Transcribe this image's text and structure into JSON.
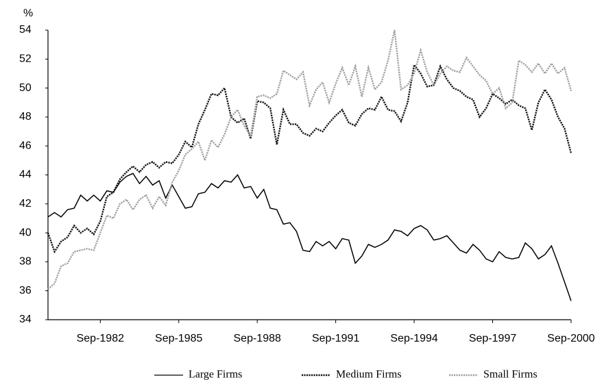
{
  "chart_data": {
    "type": "line",
    "ylabel": "%",
    "categories": [
      null,
      null,
      null,
      null,
      null,
      null,
      null,
      null,
      "Sep-1982",
      null,
      null,
      null,
      null,
      null,
      null,
      null,
      null,
      null,
      null,
      null,
      "Sep-1985",
      null,
      null,
      null,
      null,
      null,
      null,
      null,
      null,
      null,
      null,
      null,
      "Sep-1988",
      null,
      null,
      null,
      null,
      null,
      null,
      null,
      null,
      null,
      null,
      null,
      "Sep-1991",
      null,
      null,
      null,
      null,
      null,
      null,
      null,
      null,
      null,
      null,
      null,
      "Sep-1994",
      null,
      null,
      null,
      null,
      null,
      null,
      null,
      null,
      null,
      null,
      null,
      "Sep-1997",
      null,
      null,
      null,
      null,
      null,
      null,
      null,
      null,
      null,
      null,
      null,
      "Sep-2000"
    ],
    "ylim": [
      34,
      54
    ],
    "yticks": [
      34,
      36,
      38,
      40,
      42,
      44,
      46,
      48,
      50,
      52,
      54
    ],
    "grid": false,
    "legend": "bottom",
    "series": [
      {
        "name": "Large Firms",
        "color": "#000000",
        "style": "solid",
        "values": [
          41.1,
          41.4,
          41.1,
          41.6,
          41.7,
          42.6,
          42.2,
          42.6,
          42.2,
          42.9,
          42.8,
          43.5,
          43.9,
          44.1,
          43.4,
          43.9,
          43.3,
          43.6,
          42.4,
          43.3,
          42.5,
          41.7,
          41.8,
          42.7,
          42.8,
          43.4,
          43.1,
          43.6,
          43.5,
          44.0,
          43.1,
          43.2,
          42.4,
          43.0,
          41.7,
          41.6,
          40.6,
          40.7,
          40.1,
          38.8,
          38.7,
          39.4,
          39.1,
          39.4,
          38.9,
          39.6,
          39.5,
          37.9,
          38.4,
          39.2,
          39.0,
          39.2,
          39.5,
          40.2,
          40.1,
          39.8,
          40.3,
          40.5,
          40.2,
          39.5,
          39.6,
          39.8,
          39.3,
          38.8,
          38.6,
          39.2,
          38.8,
          38.2,
          38.0,
          38.7,
          38.3,
          38.2,
          38.3,
          39.3,
          38.9,
          38.2,
          38.5,
          39.1,
          37.9,
          36.6,
          35.3
        ]
      },
      {
        "name": "Medium Firms",
        "color": "#111111",
        "style": "dotted",
        "values": [
          40.0,
          38.7,
          39.4,
          39.7,
          40.5,
          40.0,
          40.3,
          39.9,
          40.8,
          42.5,
          42.8,
          43.7,
          44.2,
          44.6,
          44.2,
          44.7,
          44.9,
          44.5,
          44.9,
          44.8,
          45.4,
          46.3,
          45.9,
          47.5,
          48.5,
          49.6,
          49.5,
          50.0,
          48.0,
          47.6,
          47.9,
          46.5,
          49.1,
          49.0,
          48.6,
          46.1,
          48.5,
          47.5,
          47.5,
          46.9,
          46.7,
          47.2,
          47.0,
          47.6,
          48.1,
          48.5,
          47.6,
          47.4,
          48.2,
          48.6,
          48.5,
          49.4,
          48.5,
          48.4,
          47.7,
          49.0,
          51.6,
          51.0,
          50.1,
          50.2,
          51.5,
          50.6,
          50.0,
          49.8,
          49.4,
          49.2,
          48.0,
          48.6,
          49.6,
          49.3,
          48.9,
          49.2,
          48.8,
          48.6,
          47.1,
          49.0,
          49.9,
          49.2,
          48.0,
          47.2,
          45.5
        ]
      },
      {
        "name": "Small Firms",
        "color": "#a0a0a0",
        "style": "dotted",
        "values": [
          36.1,
          36.5,
          37.7,
          37.9,
          38.7,
          38.8,
          38.9,
          38.8,
          40.0,
          41.2,
          41.0,
          42.0,
          42.3,
          41.6,
          42.3,
          42.6,
          41.7,
          42.5,
          41.9,
          43.5,
          44.3,
          45.4,
          45.8,
          46.3,
          45.0,
          46.4,
          45.9,
          46.8,
          48.0,
          48.5,
          47.4,
          46.7,
          49.4,
          49.5,
          49.3,
          49.6,
          51.2,
          50.9,
          50.6,
          51.1,
          48.8,
          49.9,
          50.4,
          49.0,
          50.3,
          51.4,
          50.2,
          51.5,
          49.4,
          51.4,
          49.9,
          50.4,
          51.9,
          54.0,
          49.9,
          50.2,
          51.0,
          52.6,
          51.1,
          50.2,
          51.0,
          51.5,
          51.2,
          51.1,
          52.1,
          51.5,
          50.9,
          50.5,
          49.6,
          50.0,
          48.6,
          49.0,
          51.9,
          51.6,
          51.1,
          51.7,
          51.0,
          51.7,
          51.0,
          51.4,
          49.8
        ]
      }
    ]
  }
}
